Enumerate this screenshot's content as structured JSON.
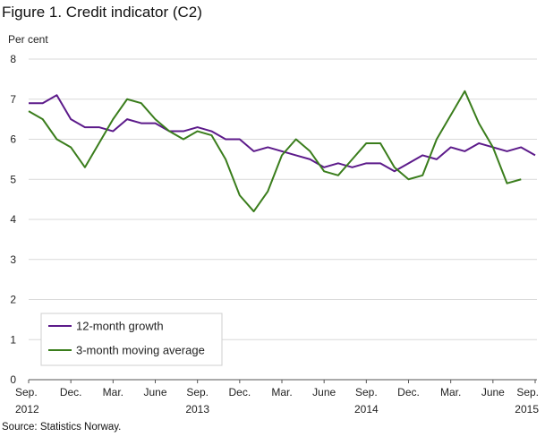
{
  "title": "Figure 1. Credit indicator (C2)",
  "source": "Source: Statistics Norway.",
  "chart_data": {
    "type": "line",
    "title": "Figure 1. Credit indicator (C2)",
    "ylabel": "Per cent",
    "xlabel": "",
    "ylim": [
      0,
      8
    ],
    "yticks": [
      0,
      1,
      2,
      3,
      4,
      5,
      6,
      7,
      8
    ],
    "grid": "horizontal",
    "legend_position": "bottom-left",
    "x_labels": [
      {
        "index": 0,
        "month": "Sep.",
        "year": "2012"
      },
      {
        "index": 3,
        "month": "Dec.",
        "year": ""
      },
      {
        "index": 6,
        "month": "Mar.",
        "year": ""
      },
      {
        "index": 9,
        "month": "June",
        "year": ""
      },
      {
        "index": 12,
        "month": "Sep.",
        "year": "2013"
      },
      {
        "index": 15,
        "month": "Dec.",
        "year": ""
      },
      {
        "index": 18,
        "month": "Mar.",
        "year": ""
      },
      {
        "index": 21,
        "month": "June",
        "year": ""
      },
      {
        "index": 24,
        "month": "Sep.",
        "year": "2014"
      },
      {
        "index": 27,
        "month": "Dec.",
        "year": ""
      },
      {
        "index": 30,
        "month": "Mar.",
        "year": ""
      },
      {
        "index": 33,
        "month": "June",
        "year": ""
      },
      {
        "index": 36,
        "month": "Sep.",
        "year": "2015"
      }
    ],
    "series": [
      {
        "name": "12-month growth",
        "color": "#5c1a8a",
        "values": [
          6.9,
          6.9,
          7.1,
          6.5,
          6.3,
          6.3,
          6.2,
          6.5,
          6.4,
          6.4,
          6.2,
          6.2,
          6.3,
          6.2,
          6.0,
          6.0,
          5.7,
          5.8,
          5.7,
          5.6,
          5.5,
          5.3,
          5.4,
          5.3,
          5.4,
          5.4,
          5.2,
          5.4,
          5.6,
          5.5,
          5.8,
          5.7,
          5.9,
          5.8,
          5.7,
          5.8,
          5.6
        ]
      },
      {
        "name": "3-month moving average",
        "color": "#3a7d1c",
        "values": [
          6.7,
          6.5,
          6.0,
          5.8,
          5.3,
          5.9,
          6.5,
          7.0,
          6.9,
          6.5,
          6.2,
          6.0,
          6.2,
          6.1,
          5.5,
          4.6,
          4.2,
          4.7,
          5.6,
          6.0,
          5.7,
          5.2,
          5.1,
          5.5,
          5.9,
          5.9,
          5.3,
          5.0,
          5.1,
          6.0,
          6.6,
          7.2,
          6.4,
          5.8,
          4.9,
          5.0,
          null
        ]
      }
    ]
  }
}
